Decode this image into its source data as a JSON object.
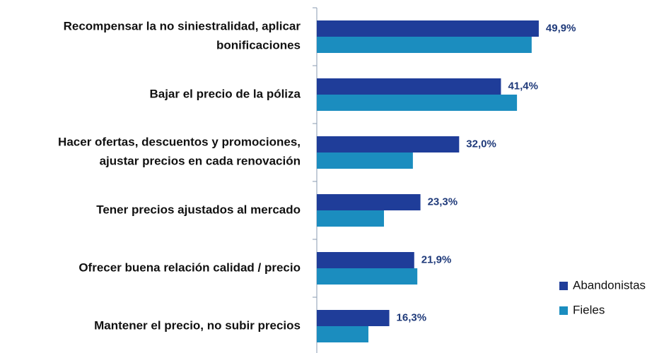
{
  "chart_data": {
    "type": "barh",
    "categories": [
      "Recompensar la no siniestralidad, aplicar\nbonificaciones",
      "Bajar el precio de la póliza",
      "Hacer ofertas, descuentos y promociones,\najustar precios en cada renovación",
      "Tener precios ajustados al mercado",
      "Ofrecer buena relación calidad / precio",
      "Mantener el precio, no subir precios"
    ],
    "series": [
      {
        "name": "Abandonistas",
        "color": "#1f3d99",
        "values": [
          49.9,
          41.4,
          32.0,
          23.3,
          21.9,
          16.3
        ],
        "value_labels": [
          "49,9%",
          "41,4%",
          "32,0%",
          "23,3%",
          "21,9%",
          "16,3%"
        ]
      },
      {
        "name": "Fieles",
        "color": "#1b8dbf",
        "values": [
          48.3,
          45.0,
          21.6,
          15.1,
          22.6,
          11.6
        ]
      }
    ],
    "xlim": [
      0,
      55
    ],
    "legend": "right"
  }
}
